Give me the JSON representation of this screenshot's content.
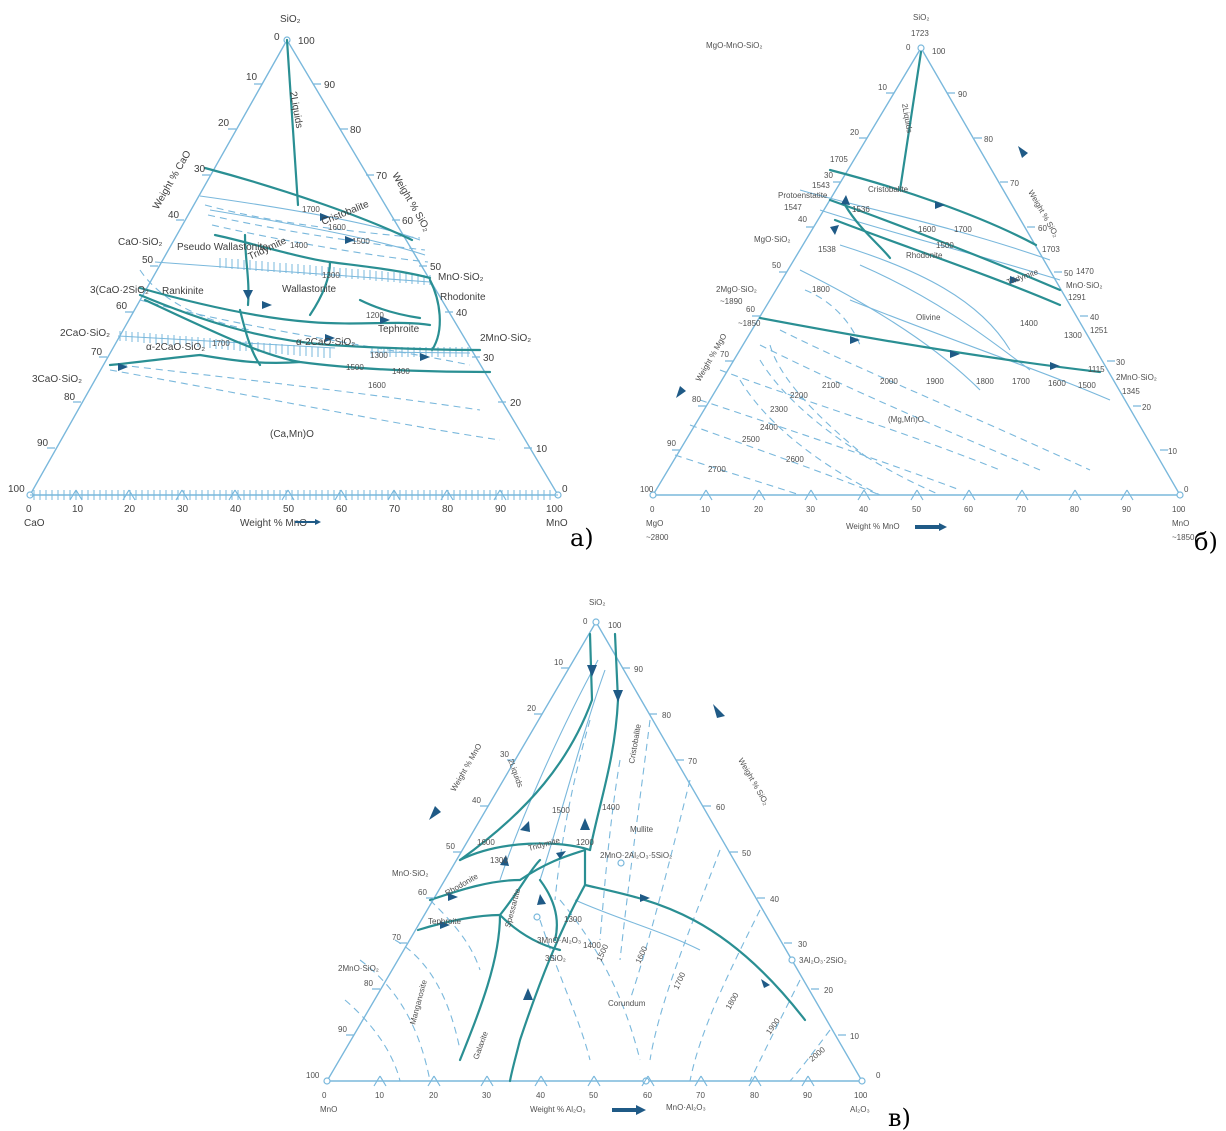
{
  "diagrams": {
    "a": {
      "tag": "а)",
      "apex_top": "SiO₂",
      "corner_left": "CaO",
      "corner_right": "MnO",
      "axis_bottom_label": "Weight % MnO",
      "axis_left_label": "Weight % CaO",
      "axis_right_label": "Weight % SiO₂",
      "ticks": [
        "0",
        "10",
        "20",
        "30",
        "40",
        "50",
        "60",
        "70",
        "80",
        "90",
        "100"
      ],
      "phase_labels": [
        "2Liquids",
        "Cristobalite",
        "Tridymite",
        "Pseudo Wallastonite",
        "Rankinite",
        "Wallastonite",
        "Rhodonite",
        "Tephroite",
        "α-2CaO·SiO₂",
        "(Ca,Mn)O"
      ],
      "compounds": [
        "CaO·SiO₂",
        "3(CaO·2SiO₂",
        "2CaO·SiO₂",
        "3CaO·SiO₂",
        "MnO·SiO₂",
        "2MnO·SiO₂",
        "α-2CaO·SiO₂"
      ],
      "isotherms": [
        "1700",
        "1600",
        "1500",
        "1400",
        "1300",
        "1200",
        "1700",
        "1600",
        "1500",
        "1400",
        "1300"
      ]
    },
    "b": {
      "tag": "б)",
      "system": "MgO-MnO-SiO₂",
      "apex_top": "SiO₂",
      "apex_top_temp": "1723",
      "corner_left": "MgO",
      "corner_left_temp": "~2800",
      "corner_right": "MnO",
      "corner_right_temp": "~1850",
      "axis_bottom_label": "Weight % MnO",
      "axis_left_label": "Weight % MgO",
      "axis_right_label": "Weight % SiO₂",
      "ticks": [
        "0",
        "10",
        "20",
        "30",
        "40",
        "50",
        "60",
        "70",
        "80",
        "90",
        "100"
      ],
      "phase_labels": [
        "2Liquids",
        "Cristobalite",
        "Protoenstatite",
        "Rhodonite",
        "Tridymite",
        "Olivine",
        "(Mg,Mn)O"
      ],
      "compounds": [
        "MgO·SiO₂",
        "2MgO·SiO₂",
        "MnO·SiO₂",
        "2MnO·SiO₂"
      ],
      "point_temps": [
        "1705",
        "1543",
        "1547",
        "1536",
        "1538",
        "~1890",
        "~1850",
        "1703",
        "1470",
        "1291",
        "1251",
        "1115",
        "1345"
      ],
      "isotherms": [
        "1700",
        "1600",
        "1500",
        "1400",
        "1300",
        "1800",
        "1900",
        "2000",
        "2100",
        "2200",
        "2300",
        "2400",
        "2500",
        "2600",
        "2700",
        "1800",
        "1700",
        "1600",
        "1500"
      ]
    },
    "c": {
      "tag": "в)",
      "apex_top": "SiO₂",
      "corner_left": "MnO",
      "corner_right": "Al₂O₃",
      "axis_bottom_label": "Weight % Al₂O₃",
      "axis_left_label": "Weight % MnO",
      "axis_right_label": "Weight % SiO₂",
      "ticks": [
        "0",
        "10",
        "20",
        "30",
        "40",
        "50",
        "60",
        "70",
        "80",
        "90",
        "100"
      ],
      "phase_labels": [
        "2Liquids",
        "Cristobalite",
        "Tridymite",
        "Mullite",
        "Rhodonite",
        "Tephroite",
        "Spessartite",
        "Manganosite",
        "Galaxite",
        "Corundum"
      ],
      "compounds": [
        "MnO·SiO₂",
        "2MnO·SiO₂",
        "2MnO·2Al₂O₃·5SiO₂",
        "3MnO·Al₂O₃",
        "3SiO₂",
        "3Al₂O₃·2SiO₂",
        "MnO·Al₂O₃"
      ],
      "isotherms": [
        "1600",
        "1500",
        "1400",
        "1300",
        "1200",
        "1300",
        "1400",
        "1500",
        "1600",
        "1700",
        "1800",
        "1900",
        "2000"
      ]
    }
  }
}
